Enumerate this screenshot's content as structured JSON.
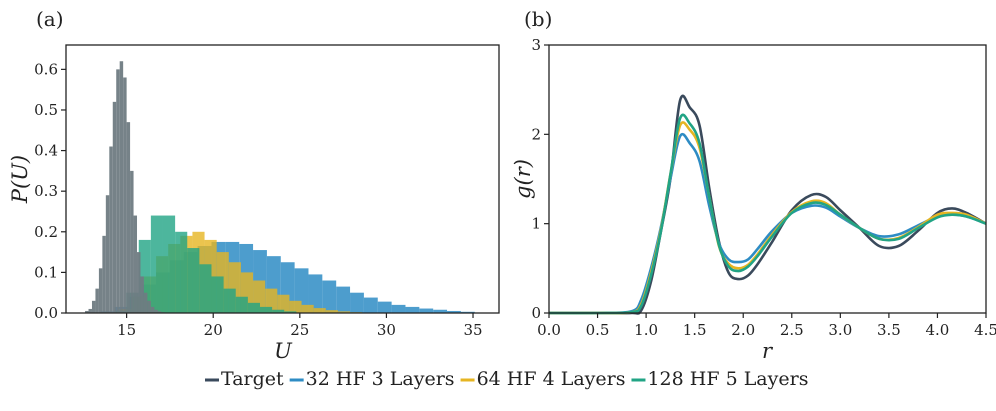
{
  "panel_a": {
    "label": "(a)",
    "xlabel": "U",
    "ylabel": "P(U)"
  },
  "panel_b": {
    "label": "(b)",
    "xlabel": "r",
    "ylabel": "g(r)"
  },
  "legend": [
    {
      "name": "Target",
      "color": "#3a4a5c"
    },
    {
      "name": "32 HF 3 Layers",
      "color": "#2e8cc4"
    },
    {
      "name": "64 HF 4 Layers",
      "color": "#e6b522"
    },
    {
      "name": "128 HF 5 Layers",
      "color": "#21a485"
    }
  ],
  "chart_data": [
    {
      "type": "bar",
      "panel": "(a)",
      "xlabel": "U",
      "ylabel": "P(U)",
      "xlim": [
        11.5,
        36.5
      ],
      "ylim": [
        0,
        0.66
      ],
      "xticks": [
        15,
        20,
        25,
        30,
        35
      ],
      "yticks": [
        0.0,
        0.1,
        0.2,
        0.3,
        0.4,
        0.5,
        0.6
      ],
      "grid": false,
      "series": [
        {
          "name": "Target",
          "color": "#6f7b82",
          "opacity": 0.95,
          "bin_edges": [
            12.6,
            12.8,
            13.0,
            13.2,
            13.4,
            13.6,
            13.8,
            14.0,
            14.2,
            14.4,
            14.6,
            14.8,
            15.0,
            15.2,
            15.4,
            15.6,
            15.8,
            16.0,
            16.2,
            16.4,
            16.6,
            16.8,
            17.0,
            17.2
          ],
          "values": [
            0.005,
            0.01,
            0.03,
            0.06,
            0.11,
            0.19,
            0.29,
            0.41,
            0.52,
            0.6,
            0.62,
            0.58,
            0.47,
            0.35,
            0.24,
            0.15,
            0.09,
            0.05,
            0.03,
            0.015,
            0.008,
            0.004,
            0.002
          ]
        },
        {
          "name": "32 HF 3 Layers",
          "color": "#2e8cc4",
          "opacity": 0.85,
          "bin_edges": [
            13.5,
            14.3,
            15.1,
            15.9,
            16.7,
            17.5,
            18.3,
            19.1,
            19.9,
            20.7,
            21.5,
            22.3,
            23.1,
            23.9,
            24.7,
            25.5,
            26.3,
            27.1,
            27.9,
            28.7,
            29.5,
            30.3,
            31.1,
            31.9,
            32.7,
            33.5,
            34.3,
            35.1
          ],
          "values": [
            0.004,
            0.015,
            0.04,
            0.07,
            0.1,
            0.13,
            0.15,
            0.165,
            0.175,
            0.175,
            0.17,
            0.155,
            0.14,
            0.125,
            0.11,
            0.095,
            0.08,
            0.065,
            0.05,
            0.038,
            0.028,
            0.02,
            0.015,
            0.011,
            0.008,
            0.005,
            0.003
          ]
        },
        {
          "name": "64 HF 4 Layers",
          "color": "#e6b522",
          "opacity": 0.8,
          "bin_edges": [
            14.6,
            15.3,
            16.0,
            16.7,
            17.4,
            18.1,
            18.8,
            19.5,
            20.2,
            20.9,
            21.6,
            22.3,
            23.0,
            23.7,
            24.4,
            25.1,
            25.8,
            26.5,
            27.2,
            27.9,
            28.6
          ],
          "values": [
            0.01,
            0.04,
            0.09,
            0.14,
            0.17,
            0.19,
            0.2,
            0.18,
            0.15,
            0.125,
            0.1,
            0.08,
            0.06,
            0.045,
            0.03,
            0.02,
            0.012,
            0.007,
            0.004,
            0.002
          ]
        },
        {
          "name": "128 HF 5 Layers",
          "color": "#21a485",
          "opacity": 0.8,
          "bin_edges": [
            14.3,
            15.0,
            15.7,
            16.4,
            17.1,
            17.8,
            18.5,
            19.2,
            19.9,
            20.6,
            21.3,
            22.0,
            22.7,
            23.4,
            24.1,
            24.8
          ],
          "values": [
            0.005,
            0.05,
            0.18,
            0.24,
            0.24,
            0.2,
            0.16,
            0.12,
            0.09,
            0.06,
            0.04,
            0.025,
            0.015,
            0.008,
            0.004
          ]
        }
      ]
    },
    {
      "type": "line",
      "panel": "(b)",
      "xlabel": "r",
      "ylabel": "g(r)",
      "xlim": [
        0.0,
        4.5
      ],
      "ylim": [
        0,
        3
      ],
      "xticks": [
        0.0,
        0.5,
        1.0,
        1.5,
        2.0,
        2.5,
        3.0,
        3.5,
        4.0,
        4.5
      ],
      "yticks": [
        0,
        1,
        2,
        3
      ],
      "grid": false,
      "x": [
        0.0,
        0.5,
        0.85,
        0.95,
        1.05,
        1.15,
        1.25,
        1.35,
        1.45,
        1.55,
        1.65,
        1.75,
        1.85,
        1.95,
        2.05,
        2.15,
        2.3,
        2.5,
        2.7,
        2.85,
        3.0,
        3.2,
        3.4,
        3.6,
        3.8,
        4.0,
        4.15,
        4.3,
        4.5
      ],
      "series": [
        {
          "name": "Target",
          "color": "#3a4a5c",
          "values": [
            0.0,
            0.0,
            0.0,
            0.03,
            0.35,
            0.9,
            1.5,
            2.38,
            2.3,
            2.1,
            1.4,
            0.8,
            0.45,
            0.38,
            0.42,
            0.55,
            0.8,
            1.15,
            1.32,
            1.3,
            1.15,
            0.95,
            0.75,
            0.75,
            0.92,
            1.12,
            1.17,
            1.12,
            1.0
          ]
        },
        {
          "name": "32 HF 3 Layers",
          "color": "#2e8cc4",
          "values": [
            0.0,
            0.0,
            0.02,
            0.15,
            0.5,
            0.95,
            1.5,
            1.98,
            1.9,
            1.7,
            1.2,
            0.78,
            0.6,
            0.57,
            0.6,
            0.72,
            0.92,
            1.12,
            1.2,
            1.18,
            1.08,
            0.95,
            0.86,
            0.88,
            0.98,
            1.08,
            1.1,
            1.08,
            1.0
          ]
        },
        {
          "name": "64 HF 4 Layers",
          "color": "#e6b522",
          "values": [
            0.0,
            0.0,
            0.01,
            0.1,
            0.45,
            0.92,
            1.55,
            2.1,
            2.05,
            1.85,
            1.3,
            0.75,
            0.55,
            0.5,
            0.54,
            0.66,
            0.88,
            1.13,
            1.25,
            1.23,
            1.1,
            0.95,
            0.83,
            0.84,
            0.96,
            1.1,
            1.12,
            1.1,
            1.0
          ]
        },
        {
          "name": "128 HF 5 Layers",
          "color": "#21a485",
          "values": [
            0.0,
            0.0,
            0.01,
            0.08,
            0.42,
            0.9,
            1.55,
            2.18,
            2.12,
            1.9,
            1.3,
            0.76,
            0.52,
            0.47,
            0.52,
            0.64,
            0.86,
            1.12,
            1.23,
            1.21,
            1.1,
            0.95,
            0.83,
            0.83,
            0.95,
            1.07,
            1.1,
            1.08,
            1.0
          ]
        }
      ]
    }
  ]
}
